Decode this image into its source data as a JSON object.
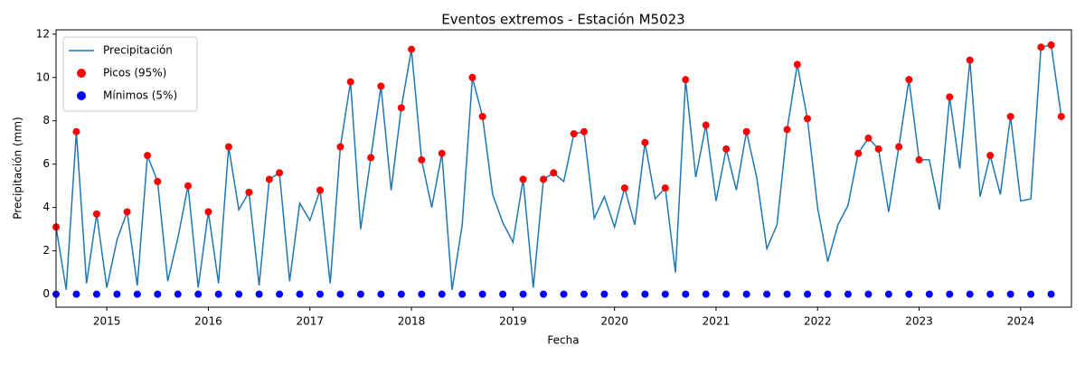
{
  "chart_data": {
    "type": "line",
    "title": "Eventos extremos - Estación M5023",
    "x_label": "Fecha",
    "y_label": "Precipitación (mm)",
    "xlim": [
      2014.5,
      2024.5
    ],
    "xticks": [
      2015,
      2016,
      2017,
      2018,
      2019,
      2020,
      2021,
      2022,
      2023,
      2024
    ],
    "ylim": [
      -0.6,
      12.2
    ],
    "yticks": [
      0,
      2,
      4,
      6,
      8,
      10,
      12
    ],
    "legend": "upper left",
    "series": [
      {
        "name": "Precipitación",
        "type": "line",
        "color": "#1f77b4",
        "x": [
          2014.5,
          2014.6,
          2014.7,
          2014.8,
          2014.9,
          2015.0,
          2015.1,
          2015.2,
          2015.3,
          2015.4,
          2015.5,
          2015.6,
          2015.7,
          2015.8,
          2015.9,
          2016.0,
          2016.1,
          2016.2,
          2016.3,
          2016.4,
          2016.5,
          2016.6,
          2016.7,
          2016.8,
          2016.9,
          2017.0,
          2017.1,
          2017.2,
          2017.3,
          2017.4,
          2017.5,
          2017.6,
          2017.7,
          2017.8,
          2017.9,
          2018.0,
          2018.1,
          2018.2,
          2018.3,
          2018.4,
          2018.5,
          2018.6,
          2018.7,
          2018.8,
          2018.9,
          2019.0,
          2019.1,
          2019.2,
          2019.3,
          2019.4,
          2019.5,
          2019.6,
          2019.7,
          2019.8,
          2019.9,
          2020.0,
          2020.1,
          2020.2,
          2020.3,
          2020.4,
          2020.5,
          2020.6,
          2020.7,
          2020.8,
          2020.9,
          2021.0,
          2021.1,
          2021.2,
          2021.3,
          2021.4,
          2021.5,
          2021.6,
          2021.7,
          2021.8,
          2021.9,
          2022.0,
          2022.1,
          2022.2,
          2022.3,
          2022.4,
          2022.5,
          2022.6,
          2022.7,
          2022.8,
          2022.9,
          2023.0,
          2023.1,
          2023.2,
          2023.3,
          2023.4,
          2023.5,
          2023.6,
          2023.7,
          2023.8,
          2023.9,
          2024.0,
          2024.1,
          2024.2,
          2024.3,
          2024.4
        ],
        "values": [
          3.1,
          0.2,
          7.5,
          0.5,
          3.7,
          0.3,
          2.5,
          3.8,
          0.4,
          6.4,
          5.2,
          0.6,
          2.6,
          5.0,
          0.3,
          3.8,
          0.5,
          6.8,
          3.9,
          4.7,
          0.4,
          5.3,
          5.6,
          0.6,
          4.2,
          3.4,
          4.8,
          0.5,
          6.8,
          9.8,
          3.0,
          6.3,
          9.6,
          4.8,
          8.6,
          11.3,
          6.2,
          4.0,
          6.5,
          0.2,
          3.2,
          10.0,
          8.2,
          4.6,
          3.3,
          2.4,
          5.3,
          0.3,
          5.3,
          5.6,
          5.2,
          7.4,
          7.5,
          3.5,
          4.5,
          3.1,
          4.9,
          3.2,
          7.0,
          4.4,
          4.9,
          1.0,
          9.9,
          5.4,
          7.8,
          4.3,
          6.7,
          4.8,
          7.5,
          5.4,
          2.1,
          3.2,
          7.6,
          10.6,
          8.1,
          4.0,
          1.5,
          3.2,
          4.1,
          6.5,
          7.2,
          6.7,
          3.8,
          6.8,
          9.9,
          6.2,
          6.2,
          3.9,
          9.1,
          5.8,
          10.8,
          4.5,
          6.4,
          4.6,
          8.2,
          4.3,
          4.4,
          11.4,
          11.5,
          8.2
        ]
      },
      {
        "name": "Picos (95%)",
        "type": "scatter",
        "color": "#ff0000",
        "x": [
          2014.5,
          2014.7,
          2014.9,
          2015.2,
          2015.4,
          2015.5,
          2015.8,
          2016.0,
          2016.2,
          2016.4,
          2016.6,
          2016.7,
          2017.1,
          2017.3,
          2017.4,
          2017.6,
          2017.7,
          2017.9,
          2018.0,
          2018.1,
          2018.3,
          2018.6,
          2018.7,
          2019.1,
          2019.3,
          2019.4,
          2019.6,
          2019.7,
          2020.1,
          2020.3,
          2020.5,
          2020.7,
          2020.9,
          2021.1,
          2021.3,
          2021.7,
          2021.8,
          2021.9,
          2022.4,
          2022.5,
          2022.6,
          2022.8,
          2022.9,
          2023.0,
          2023.3,
          2023.5,
          2023.7,
          2023.9,
          2024.2,
          2024.3,
          2024.4
        ],
        "values": [
          3.1,
          7.5,
          3.7,
          3.8,
          6.4,
          5.2,
          5.0,
          3.8,
          6.8,
          4.7,
          5.3,
          5.6,
          4.8,
          6.8,
          9.8,
          6.3,
          9.6,
          8.6,
          11.3,
          6.2,
          6.5,
          10.0,
          8.2,
          5.3,
          5.3,
          5.6,
          7.4,
          7.5,
          4.9,
          7.0,
          4.9,
          9.9,
          7.8,
          6.7,
          7.5,
          7.6,
          10.6,
          8.1,
          6.5,
          7.2,
          6.7,
          6.8,
          9.9,
          6.2,
          9.1,
          10.8,
          6.4,
          8.2,
          11.4,
          11.5,
          8.2
        ]
      },
      {
        "name": "Mínimos (5%)",
        "type": "scatter",
        "color": "#0000ff",
        "x": [
          2014.5,
          2014.7,
          2014.9,
          2015.1,
          2015.3,
          2015.5,
          2015.7,
          2015.9,
          2016.1,
          2016.3,
          2016.5,
          2016.7,
          2016.9,
          2017.1,
          2017.3,
          2017.5,
          2017.7,
          2017.9,
          2018.1,
          2018.3,
          2018.5,
          2018.7,
          2018.9,
          2019.1,
          2019.3,
          2019.5,
          2019.7,
          2019.9,
          2020.1,
          2020.3,
          2020.5,
          2020.7,
          2020.9,
          2021.1,
          2021.3,
          2021.5,
          2021.7,
          2021.9,
          2022.1,
          2022.3,
          2022.5,
          2022.7,
          2022.9,
          2023.1,
          2023.3,
          2023.5,
          2023.7,
          2023.9,
          2024.1,
          2024.3
        ],
        "values": [
          0,
          0,
          0,
          0,
          0,
          0,
          0,
          0,
          0,
          0,
          0,
          0,
          0,
          0,
          0,
          0,
          0,
          0,
          0,
          0,
          0,
          0,
          0,
          0,
          0,
          0,
          0,
          0,
          0,
          0,
          0,
          0,
          0,
          0,
          0,
          0,
          0,
          0,
          0,
          0,
          0,
          0,
          0,
          0,
          0,
          0,
          0,
          0,
          0,
          0
        ]
      }
    ]
  }
}
